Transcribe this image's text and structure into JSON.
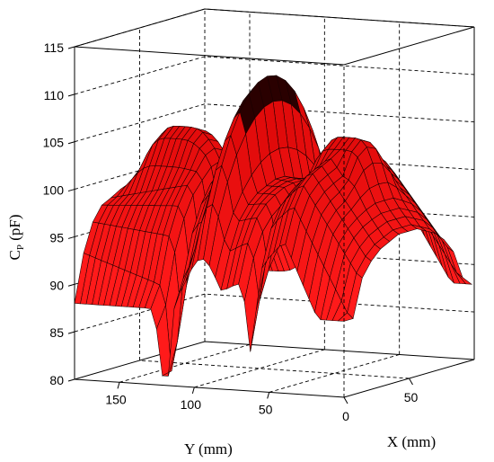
{
  "chart_data": {
    "type": "surface3d",
    "zlabel": "C",
    "zlabel_sub": "P",
    "zlabel_unit": " (pF)",
    "xlabel": "X (mm)",
    "ylabel": "Y (mm)",
    "zlim": [
      80,
      115
    ],
    "xlim": [
      0,
      100
    ],
    "ylim": [
      0,
      180
    ],
    "z_ticks": [
      "80",
      "85",
      "90",
      "95",
      "100",
      "105",
      "110",
      "115"
    ],
    "x_ticks": [
      "0",
      "50"
    ],
    "y_ticks": [
      "150",
      "100",
      "50"
    ],
    "surface_color": "#ff1a1a",
    "grid": true,
    "surface": {
      "x_samples": [
        0,
        7,
        14,
        21,
        28,
        35,
        42,
        49,
        56,
        63,
        70,
        77,
        84,
        91,
        98
      ],
      "y_profiles": [
        {
          "y": 2,
          "z": [
            82.5,
            88,
            92,
            93.5,
            94.5,
            95,
            95.5,
            95.5,
            95.5,
            95,
            94.5,
            93.5,
            92,
            89,
            85
          ]
        },
        {
          "y": 40,
          "z": [
            96,
            99.5,
            101.5,
            102.5,
            103,
            103.5,
            103.5,
            103.5,
            103.5,
            103,
            102.5,
            101.5,
            100,
            98,
            95
          ]
        },
        {
          "y": 62,
          "z": [
            92,
            96,
            98,
            99,
            99.5,
            100,
            100,
            100,
            100,
            99.5,
            99,
            98,
            96.5,
            94.5,
            91
          ]
        },
        {
          "y": 85,
          "z": [
            90,
            94,
            97,
            98.5,
            99.5,
            100,
            100.5,
            100.5,
            100,
            99.5,
            98.5,
            97,
            95,
            92.5,
            89
          ]
        },
        {
          "y": 105,
          "z": [
            87,
            93,
            97,
            99.5,
            101,
            102,
            102.5,
            102.5,
            102,
            101,
            99.5,
            97.5,
            95,
            92,
            88
          ]
        },
        {
          "y": 125,
          "z": [
            84,
            90,
            95,
            98,
            100,
            101,
            101.5,
            101.5,
            101,
            100,
            98.5,
            96.5,
            94,
            91,
            87
          ]
        },
        {
          "y": 180,
          "z": [
            88,
            93,
            96,
            97.5,
            98,
            98.5,
            98.5,
            98.5,
            98.5,
            98,
            97.5,
            96.5,
            95,
            92.5,
            89
          ]
        }
      ],
      "bumps": [
        {
          "y": 62,
          "amplitude": 10,
          "x_profile": "plateau"
        },
        {
          "y": 130,
          "amplitude": 10,
          "x_profile": "plateau"
        }
      ],
      "ridge": {
        "y": 95,
        "peak": 113
      }
    }
  }
}
